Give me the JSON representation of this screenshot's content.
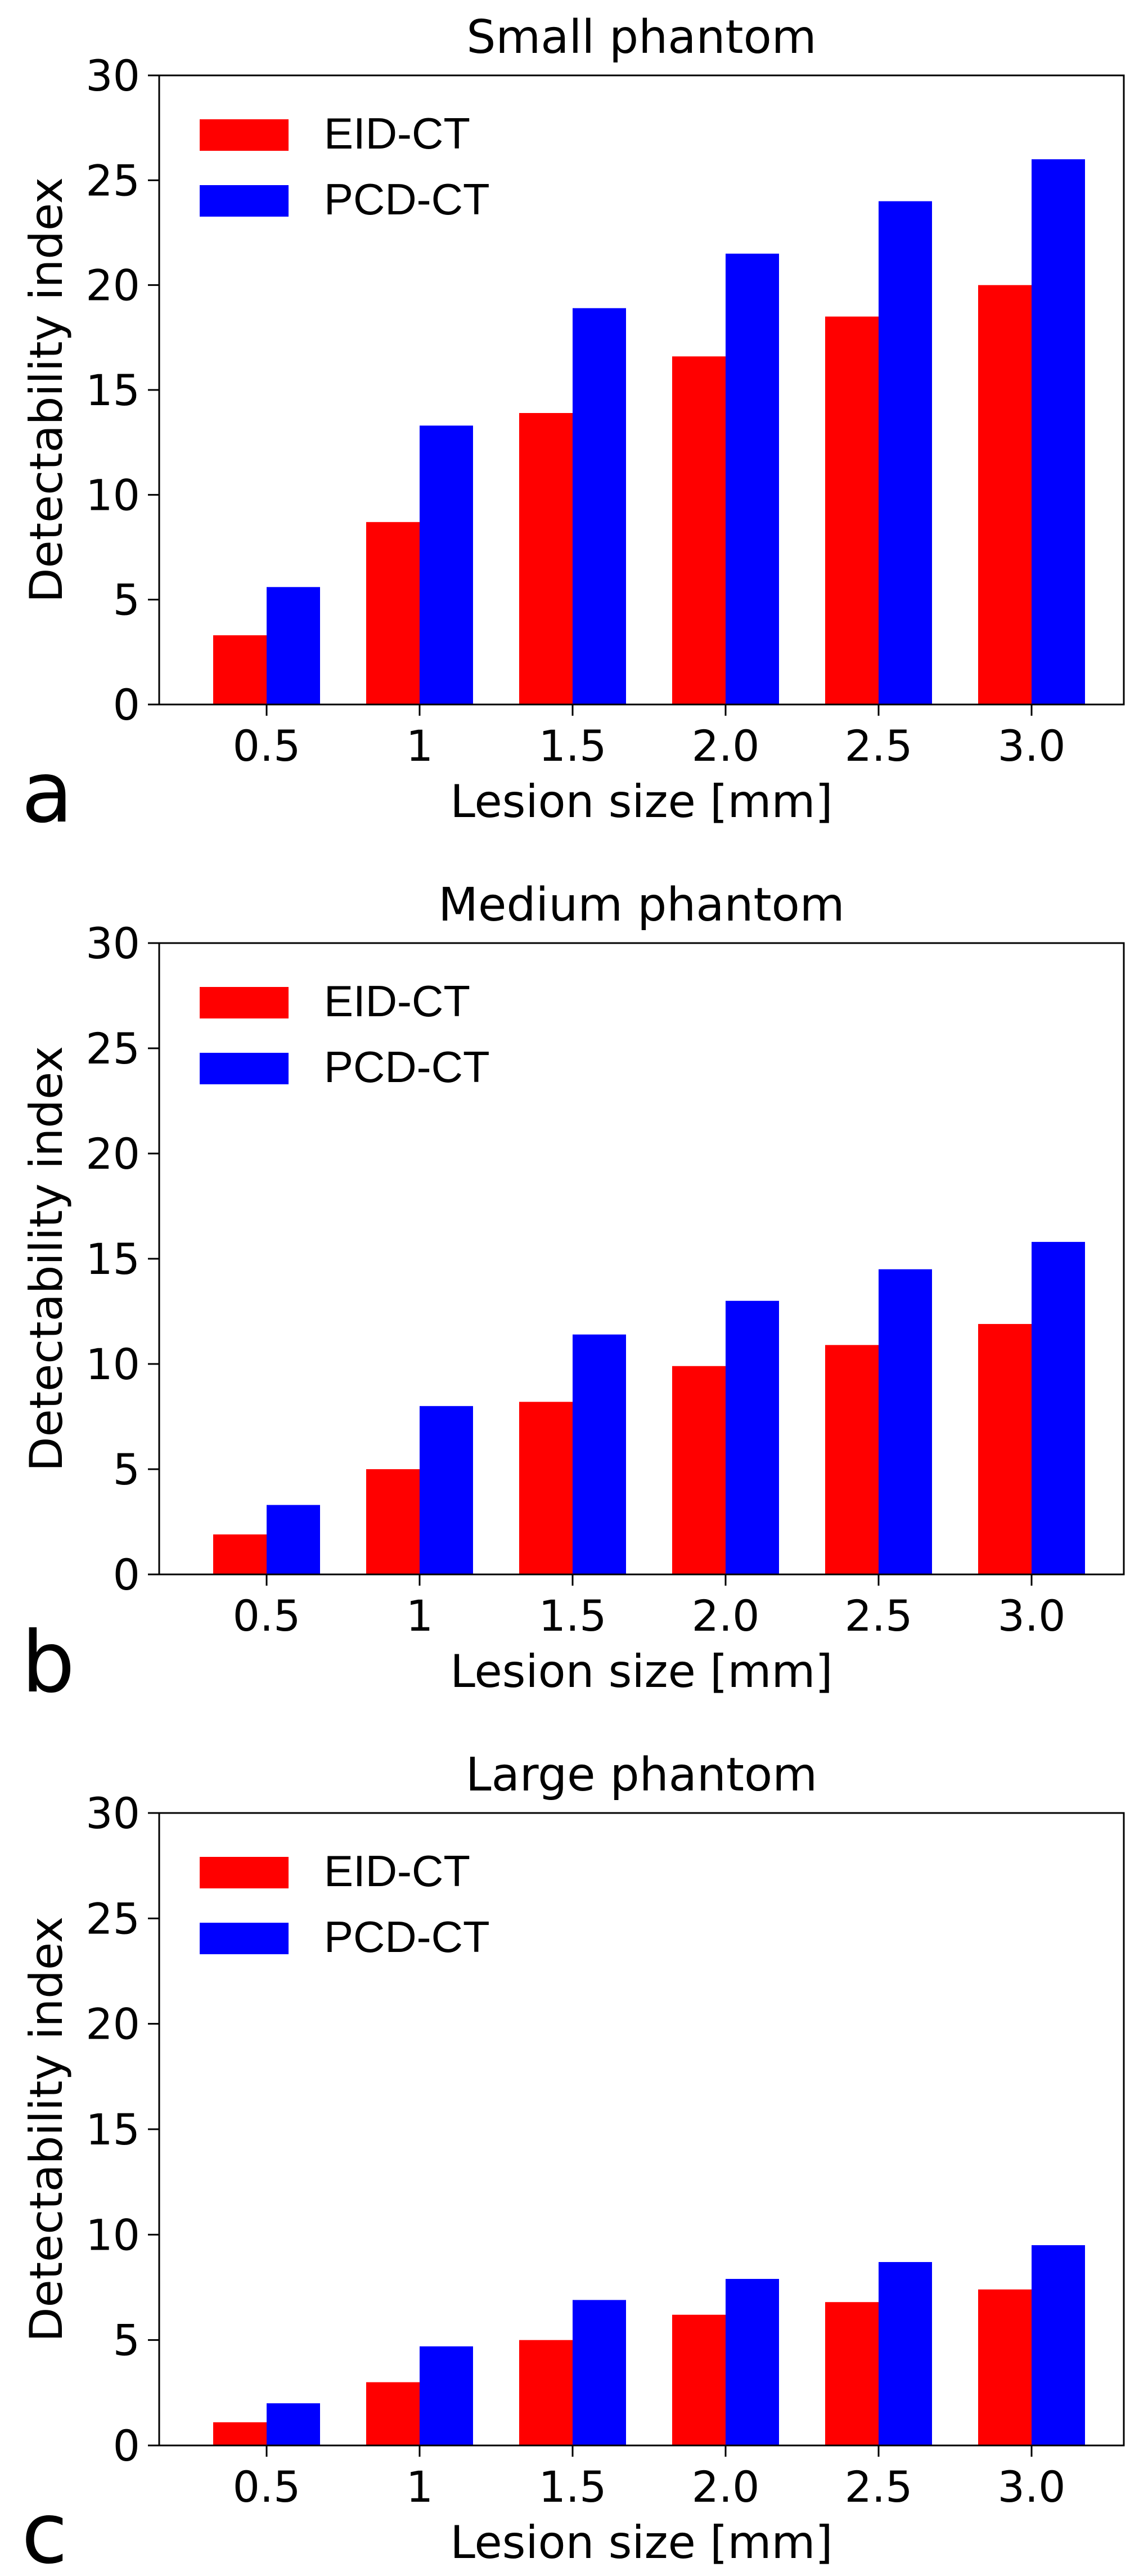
{
  "chart_data": [
    {
      "type": "bar",
      "panel_letter": "a",
      "title": "Small phantom",
      "xlabel": "Lesion size [mm]",
      "ylabel": "Detectability index",
      "categories": [
        "0.5",
        "1",
        "1.5",
        "2.0",
        "2.5",
        "3.0"
      ],
      "ylim": [
        0,
        30
      ],
      "yticks": [
        "0",
        "5",
        "10",
        "15",
        "20",
        "25",
        "30"
      ],
      "legend_position": "top-left",
      "series": [
        {
          "name": "EID-CT",
          "color": "#ff0000",
          "values": [
            3.3,
            8.7,
            13.9,
            16.6,
            18.5,
            20.0
          ]
        },
        {
          "name": "PCD-CT",
          "color": "#0000ff",
          "values": [
            5.6,
            13.3,
            18.9,
            21.5,
            24.0,
            26.0
          ]
        }
      ]
    },
    {
      "type": "bar",
      "panel_letter": "b",
      "title": "Medium phantom",
      "xlabel": "Lesion size [mm]",
      "ylabel": "Detectability index",
      "categories": [
        "0.5",
        "1",
        "1.5",
        "2.0",
        "2.5",
        "3.0"
      ],
      "ylim": [
        0,
        30
      ],
      "yticks": [
        "0",
        "5",
        "10",
        "15",
        "20",
        "25",
        "30"
      ],
      "legend_position": "top-left",
      "series": [
        {
          "name": "EID-CT",
          "color": "#ff0000",
          "values": [
            1.9,
            5.0,
            8.2,
            9.9,
            10.9,
            11.9
          ]
        },
        {
          "name": "PCD-CT",
          "color": "#0000ff",
          "values": [
            3.3,
            8.0,
            11.4,
            13.0,
            14.5,
            15.8
          ]
        }
      ]
    },
    {
      "type": "bar",
      "panel_letter": "c",
      "title": "Large phantom",
      "xlabel": "Lesion size [mm]",
      "ylabel": "Detectability index",
      "categories": [
        "0.5",
        "1",
        "1.5",
        "2.0",
        "2.5",
        "3.0"
      ],
      "ylim": [
        0,
        30
      ],
      "yticks": [
        "0",
        "5",
        "10",
        "15",
        "20",
        "25",
        "30"
      ],
      "legend_position": "top-left",
      "series": [
        {
          "name": "EID-CT",
          "color": "#ff0000",
          "values": [
            1.1,
            3.0,
            5.0,
            6.2,
            6.8,
            7.4
          ]
        },
        {
          "name": "PCD-CT",
          "color": "#0000ff",
          "values": [
            2.0,
            4.7,
            6.9,
            7.9,
            8.7,
            9.5
          ]
        }
      ]
    }
  ]
}
